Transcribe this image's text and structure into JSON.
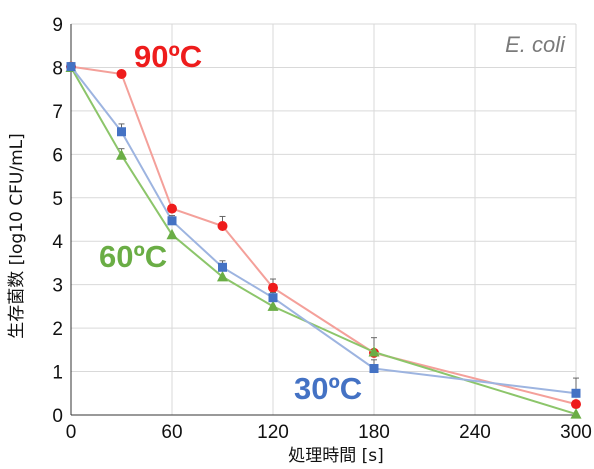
{
  "chart_data": {
    "type": "line",
    "xlabel": "処理時間 [s]",
    "ylabel": "生存菌数 [log10 CFU/mL]",
    "xlim": [
      0,
      300
    ],
    "ylim": [
      0,
      9
    ],
    "xticks": [
      "0",
      "60",
      "120",
      "180",
      "240",
      "300"
    ],
    "yticks": [
      "0",
      "1",
      "2",
      "3",
      "4",
      "5",
      "6",
      "7",
      "8",
      "9"
    ],
    "grid": true,
    "annotation": "E. coli",
    "series": [
      {
        "name": "90ºC",
        "color": "#ee1c1c",
        "line_color": "#f4a09a",
        "marker": "circle",
        "x": [
          0,
          30,
          60,
          90,
          120,
          180,
          300
        ],
        "y": [
          8.02,
          7.85,
          4.75,
          4.35,
          2.93,
          1.43,
          0.25
        ],
        "error": [
          0,
          0.05,
          0.05,
          0.22,
          0.2,
          0.35,
          0.05
        ]
      },
      {
        "name": "60ºC",
        "color": "#6aad45",
        "line_color": "#8cc56a",
        "marker": "triangle",
        "x": [
          0,
          30,
          60,
          90,
          120,
          180,
          300
        ],
        "y": [
          8.0,
          5.98,
          4.15,
          3.18,
          2.5,
          1.45,
          0.02
        ],
        "error": [
          0,
          0.15,
          0,
          0,
          0,
          0,
          0
        ]
      },
      {
        "name": "30ºC",
        "color": "#4472c4",
        "line_color": "#9db4e0",
        "marker": "square",
        "x": [
          0,
          30,
          60,
          90,
          120,
          180,
          300
        ],
        "y": [
          8.02,
          6.52,
          4.47,
          3.4,
          2.7,
          1.07,
          0.5
        ],
        "error": [
          0,
          0.18,
          0.12,
          0.15,
          0.12,
          0.2,
          0.35
        ]
      }
    ]
  }
}
